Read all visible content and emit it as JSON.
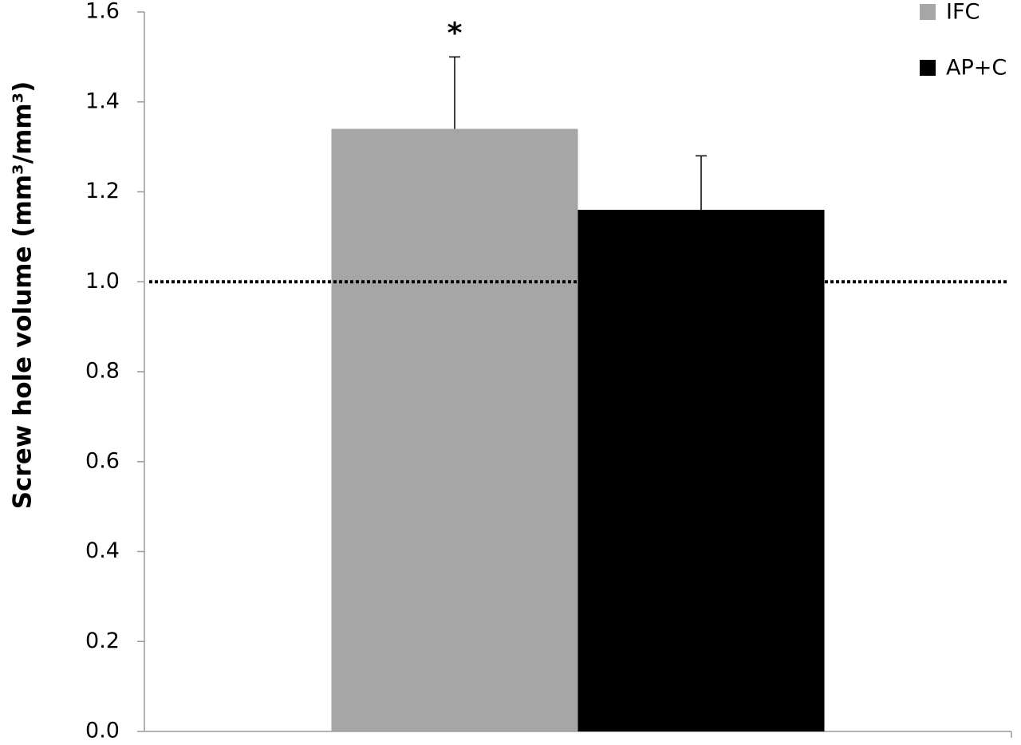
{
  "chart_data": {
    "type": "bar",
    "y_label": "Screw hole volume (mm³/mm³)",
    "categories": [
      null
    ],
    "series": [
      {
        "name": "IFC",
        "color": "#a6a6a6",
        "values": [
          1.34
        ],
        "errors": [
          0.16
        ]
      },
      {
        "name": "AP+C",
        "color": "#000000",
        "values": [
          1.16
        ],
        "errors": [
          0.12
        ]
      }
    ],
    "ylim": [
      0,
      1.6
    ],
    "yticks": [
      {
        "value": 0,
        "label": "0.0"
      },
      {
        "value": 0.2,
        "label": "0.2"
      },
      {
        "value": 0.4,
        "label": "0.4"
      },
      {
        "value": 0.6,
        "label": "0.6"
      },
      {
        "value": 0.8,
        "label": "0.8"
      },
      {
        "value": 1,
        "label": "1.0"
      },
      {
        "value": 1.2,
        "label": "1.2"
      },
      {
        "value": 1.4,
        "label": "1.4"
      },
      {
        "value": 1.6,
        "label": "1.6"
      }
    ],
    "reference_line": 1,
    "annotations": [
      {
        "text": "*",
        "series": 0,
        "category": 0
      }
    ],
    "legend": "upper right",
    "grid": false
  }
}
